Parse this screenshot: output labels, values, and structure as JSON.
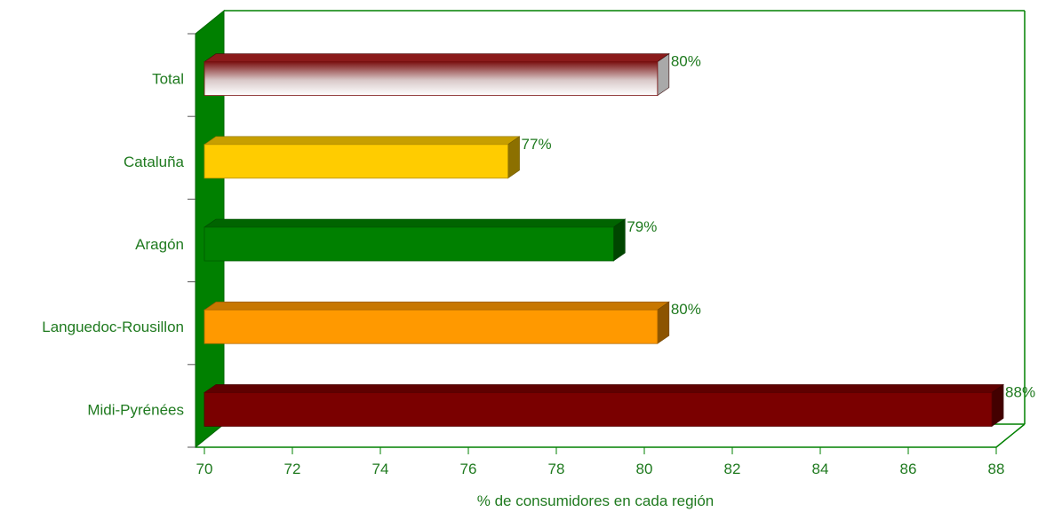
{
  "chart_data": {
    "type": "bar",
    "orientation": "horizontal",
    "style": "3d",
    "categories": [
      "Total",
      "Cataluña",
      "Aragón",
      "Languedoc-Rousillon",
      "Midi-Pyrénées"
    ],
    "values": [
      80.3,
      76.9,
      79.3,
      80.3,
      87.9
    ],
    "value_labels": [
      "80%",
      "77%",
      "79%",
      "80%",
      "88%"
    ],
    "bar_colors": [
      "gradient-maroon-white",
      "#ffcc00",
      "#008000",
      "#ff9900",
      "#7a0000"
    ],
    "xlabel": "% de consumidores en cada región",
    "ylabel": "",
    "xlim": [
      70,
      88
    ],
    "xticks": [
      "70",
      "72",
      "74",
      "76",
      "78",
      "80",
      "82",
      "84",
      "86",
      "88"
    ],
    "grid": false,
    "legend": "none",
    "axis_color": "#008000",
    "label_color": "#1f7a1f"
  }
}
